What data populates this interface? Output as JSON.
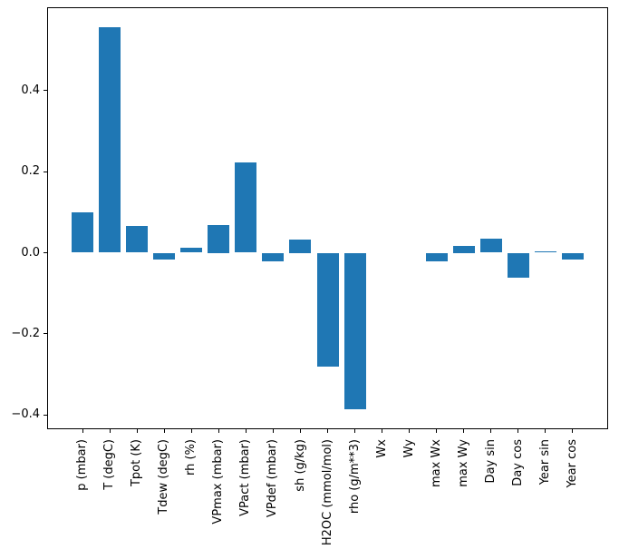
{
  "figure": {
    "background": "#ffffff",
    "axis_color": "#000000"
  },
  "chart_data": {
    "type": "bar",
    "title": "",
    "xlabel": "",
    "ylabel": "",
    "categories": [
      "p (mbar)",
      "T (degC)",
      "Tpot (K)",
      "Tdew (degC)",
      "rh (%)",
      "VPmax (mbar)",
      "VPact (mbar)",
      "VPdef (mbar)",
      "sh (g/kg)",
      "H2OC (mmol/mol)",
      "rho (g/m**3)",
      "Wx",
      "Wy",
      "max Wx",
      "max Wy",
      "Day sin",
      "Day cos",
      "Year sin",
      "Year cos"
    ],
    "values": [
      0.1,
      0.555,
      0.065,
      -0.016,
      0.013,
      0.069,
      0.222,
      -0.021,
      0.033,
      -0.28,
      -0.386,
      0.0,
      0.0,
      -0.021,
      0.016,
      0.034,
      -0.061,
      0.004,
      -0.016
    ],
    "bar_color": "#1f77b4",
    "bar_width": 0.8,
    "x_tick_rotation": 90,
    "y_ticks": [
      0.4,
      0.2,
      0.0,
      -0.2,
      -0.4
    ],
    "y_tick_labels": [
      "0.4",
      "0.2",
      "0.0",
      "−0.2",
      "−0.4"
    ],
    "xlim": [
      -1.3,
      19.3
    ],
    "ylim": [
      -0.435,
      0.605
    ],
    "grid": false,
    "legend": null
  }
}
